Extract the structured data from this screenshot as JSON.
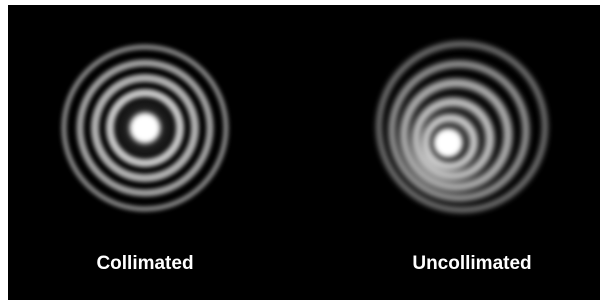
{
  "panels": [
    {
      "label": "Collimated"
    },
    {
      "label": "Uncollimated"
    }
  ]
}
